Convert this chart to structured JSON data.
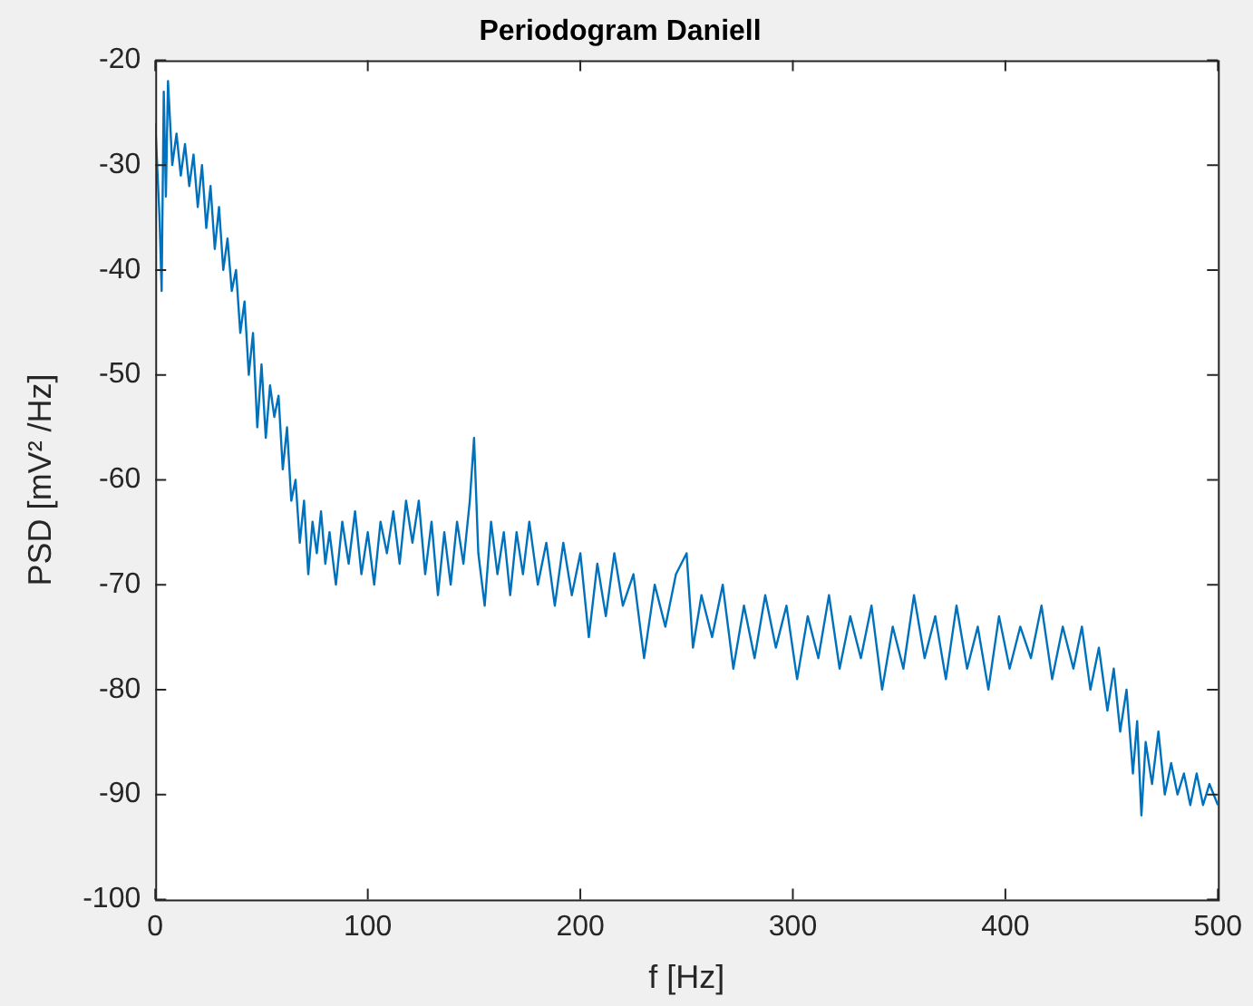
{
  "chart_data": {
    "type": "line",
    "title": "Periodogram Daniell",
    "xlabel": "f [Hz]",
    "ylabel": "PSD [mV² /Hz]",
    "xlim": [
      0,
      500
    ],
    "xticks": [
      0,
      100,
      200,
      300,
      400,
      500
    ],
    "ylim": [
      -100,
      -20
    ],
    "yticks": [
      -100,
      -90,
      -80,
      -70,
      -60,
      -50,
      -40,
      -30,
      -20
    ],
    "grid": false,
    "legend": false,
    "x": [
      0,
      2,
      3,
      4,
      5,
      6,
      8,
      10,
      12,
      14,
      16,
      18,
      20,
      22,
      24,
      26,
      28,
      30,
      32,
      34,
      36,
      38,
      40,
      42,
      44,
      46,
      48,
      50,
      52,
      54,
      56,
      58,
      60,
      62,
      64,
      66,
      68,
      70,
      72,
      74,
      76,
      78,
      80,
      82,
      85,
      88,
      91,
      94,
      97,
      100,
      103,
      106,
      109,
      112,
      115,
      118,
      121,
      124,
      127,
      130,
      133,
      136,
      139,
      142,
      145,
      148,
      150,
      152,
      155,
      158,
      161,
      164,
      167,
      170,
      173,
      176,
      180,
      184,
      188,
      192,
      196,
      200,
      204,
      208,
      212,
      216,
      220,
      225,
      230,
      235,
      240,
      245,
      250,
      253,
      257,
      262,
      267,
      272,
      277,
      282,
      287,
      292,
      297,
      302,
      307,
      312,
      317,
      322,
      327,
      332,
      337,
      342,
      347,
      352,
      357,
      362,
      367,
      372,
      377,
      382,
      387,
      392,
      397,
      402,
      407,
      412,
      417,
      422,
      427,
      432,
      436,
      440,
      444,
      448,
      451,
      454,
      457,
      460,
      462,
      464,
      466,
      469,
      472,
      475,
      478,
      481,
      484,
      487,
      490,
      493,
      496,
      500
    ],
    "series": [
      {
        "color": "#0072bd",
        "values": [
          -26,
          -35,
          -42,
          -23,
          -33,
          -22,
          -30,
          -27,
          -31,
          -28,
          -32,
          -29,
          -34,
          -30,
          -36,
          -32,
          -38,
          -34,
          -40,
          -37,
          -42,
          -40,
          -46,
          -43,
          -50,
          -46,
          -55,
          -49,
          -56,
          -51,
          -54,
          -52,
          -59,
          -55,
          -62,
          -60,
          -66,
          -62,
          -69,
          -64,
          -67,
          -63,
          -68,
          -65,
          -70,
          -64,
          -68,
          -63,
          -69,
          -65,
          -70,
          -64,
          -67,
          -63,
          -68,
          -62,
          -66,
          -62,
          -69,
          -64,
          -71,
          -65,
          -70,
          -64,
          -68,
          -62,
          -56,
          -67,
          -72,
          -64,
          -69,
          -65,
          -71,
          -65,
          -69,
          -64,
          -70,
          -66,
          -72,
          -66,
          -71,
          -67,
          -75,
          -68,
          -73,
          -67,
          -72,
          -69,
          -77,
          -70,
          -74,
          -69,
          -67,
          -76,
          -71,
          -75,
          -70,
          -78,
          -72,
          -77,
          -71,
          -76,
          -72,
          -79,
          -73,
          -77,
          -71,
          -78,
          -73,
          -77,
          -72,
          -80,
          -74,
          -78,
          -71,
          -77,
          -73,
          -79,
          -72,
          -78,
          -74,
          -80,
          -73,
          -78,
          -74,
          -77,
          -72,
          -79,
          -74,
          -78,
          -74,
          -80,
          -76,
          -82,
          -78,
          -84,
          -80,
          -88,
          -83,
          -92,
          -85,
          -89,
          -84,
          -90,
          -87,
          -90,
          -88,
          -91,
          -88,
          -91,
          -89,
          -91
        ]
      }
    ]
  }
}
